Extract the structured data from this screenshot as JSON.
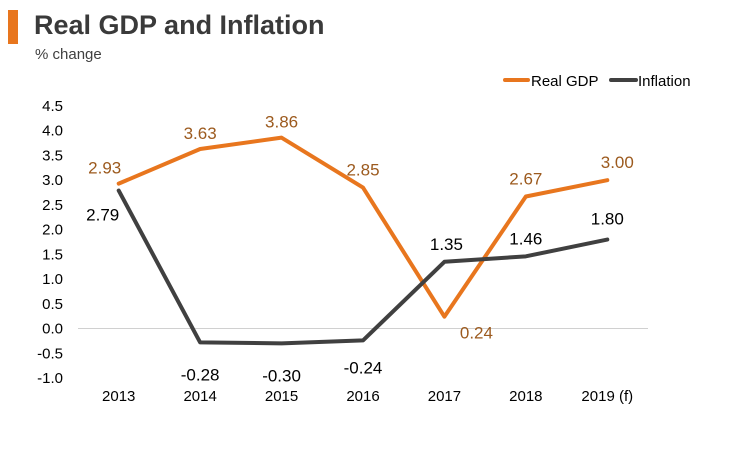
{
  "header": {
    "title": "Real GDP and Inflation",
    "subtitle": "% change"
  },
  "chart_data": {
    "type": "line",
    "title": "Real GDP and Inflation",
    "ylabel": "% change",
    "xlabel": "",
    "categories": [
      "2013",
      "2014",
      "2015",
      "2016",
      "2017",
      "2018",
      "2019 (f)"
    ],
    "ylim": [
      -1.0,
      4.5
    ],
    "yticks": [
      -1.0,
      -0.5,
      0.0,
      0.5,
      1.0,
      1.5,
      2.0,
      2.5,
      3.0,
      3.5,
      4.0,
      4.5
    ],
    "ytick_labels": [
      "-1.0",
      "-0.5",
      "0.0",
      "0.5",
      "1.0",
      "1.5",
      "2.0",
      "2.5",
      "3.0",
      "3.5",
      "4.0",
      "4.5"
    ],
    "grid": false,
    "legend_position": "top-right",
    "series": [
      {
        "name": "Real GDP",
        "color": "#e8761e",
        "label_color": "#9c5a1e",
        "values": [
          2.93,
          3.63,
          3.86,
          2.85,
          0.24,
          2.67,
          3.0
        ],
        "labels": [
          "2.93",
          "3.63",
          "3.86",
          "2.85",
          "0.24",
          "2.67",
          "3.00"
        ]
      },
      {
        "name": "Inflation",
        "color": "#404040",
        "label_color": "#000000",
        "values": [
          2.79,
          -0.28,
          -0.3,
          -0.24,
          1.35,
          1.46,
          1.8
        ],
        "labels": [
          "2.79",
          "-0.28",
          "-0.30",
          "-0.24",
          "1.35",
          "1.46",
          "1.80"
        ]
      }
    ]
  }
}
